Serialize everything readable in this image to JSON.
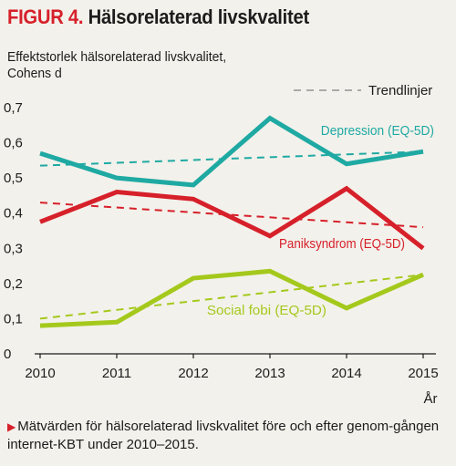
{
  "figure": {
    "label": "FIGUR 4.",
    "title": "Hälsorelaterad livskvalitet"
  },
  "caption": {
    "marker": "▶",
    "text": "Mätvärden för hälsorelaterad livskvalitet före och efter genom-gången internet-KBT under 2010–2015."
  },
  "chart_data": {
    "type": "line",
    "title": "Hälsorelaterad livskvalitet",
    "ylabel": "Effektstorlek hälsorelaterad livskvalitet,\nCohens d",
    "xlabel": "År",
    "x": [
      "2010",
      "2011",
      "2012",
      "2013",
      "2014",
      "2015"
    ],
    "ylim": [
      0,
      0.7
    ],
    "yticks": [
      "0",
      "0,1",
      "0,2",
      "0,3",
      "0,4",
      "0,5",
      "0,6",
      "0,7"
    ],
    "grid": false,
    "legend": {
      "label": "Trendlinjer",
      "position": "top-right",
      "style": "dashed"
    },
    "series": [
      {
        "name": "Depression (EQ-5D)",
        "color": "#1fa9a3",
        "values": [
          0.57,
          0.5,
          0.48,
          0.67,
          0.54,
          0.575
        ],
        "trend": [
          0.535,
          0.575
        ]
      },
      {
        "name": "Paniksyndrom (EQ-5D)",
        "color": "#d6202a",
        "values": [
          0.375,
          0.46,
          0.44,
          0.335,
          0.47,
          0.3
        ],
        "trend": [
          0.43,
          0.36
        ]
      },
      {
        "name": "Social fobi (EQ-5D)",
        "color": "#a4c91c",
        "values": [
          0.08,
          0.09,
          0.215,
          0.235,
          0.13,
          0.225
        ],
        "trend": [
          0.1,
          0.225
        ]
      }
    ]
  }
}
